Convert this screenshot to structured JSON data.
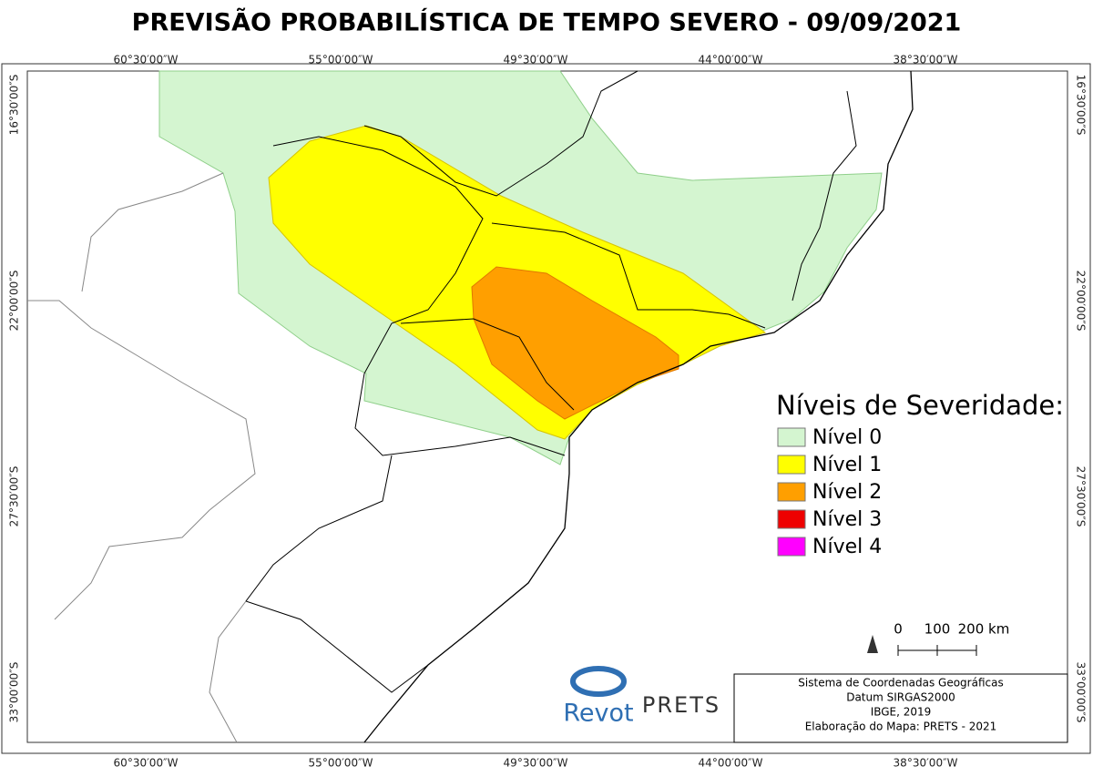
{
  "title": "PREVISÃO PROBABILÍSTICA DE TEMPO SEVERO - 09/09/2021",
  "longitudes": [
    "60°30′00″W",
    "55°00′00″W",
    "49°30′00″W",
    "44°00′00″W",
    "38°30′00″W"
  ],
  "latitudes": [
    "16°30′00″S",
    "22°00′00″S",
    "27°30′00″S",
    "33°00′00″S"
  ],
  "legend": {
    "title": "Níveis de Severidade:",
    "items": [
      {
        "label": "Nível 0",
        "color": "#d4f5d0"
      },
      {
        "label": "Nível 1",
        "color": "#ffff00"
      },
      {
        "label": "Nível 2",
        "color": "#ff9f00"
      },
      {
        "label": "Nível 3",
        "color": "#ee0000"
      },
      {
        "label": "Nível 4",
        "color": "#ff00ff"
      }
    ]
  },
  "scale": [
    "0",
    "100",
    "200 km"
  ],
  "info": [
    "Sistema de Coordenadas Geográficas",
    "Datum SIRGAS2000",
    "IBGE, 2019",
    "Elaboração do Mapa: PRETS - 2021"
  ],
  "logos": [
    "Revot",
    "PRETS"
  ]
}
